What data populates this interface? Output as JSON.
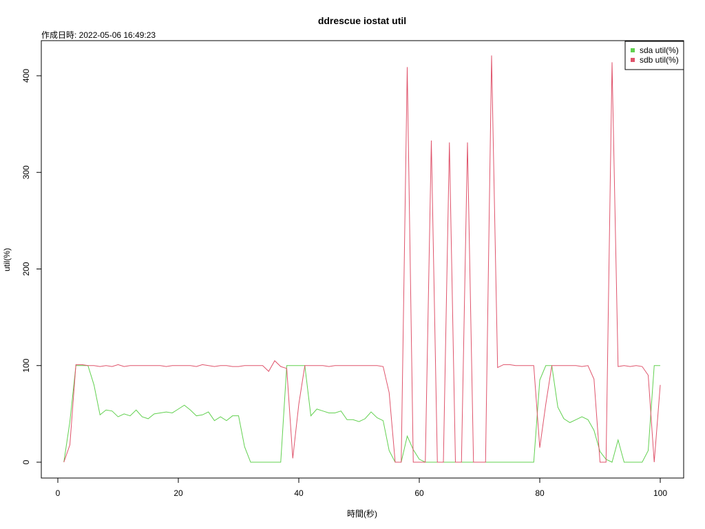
{
  "chart_data": {
    "type": "line",
    "title": "ddrescue iostat util",
    "subtitle": "作成日時: 2022-05-06 16:49:23",
    "xlabel": "時間(秒)",
    "ylabel": "util(%)",
    "xlim": [
      1,
      100
    ],
    "ylim": [
      0,
      420
    ],
    "xticks": [
      0,
      20,
      40,
      60,
      80,
      100
    ],
    "yticks": [
      0,
      100,
      200,
      300,
      400
    ],
    "grid": false,
    "legend_position": "top-right",
    "x": [
      1,
      2,
      3,
      4,
      5,
      6,
      7,
      8,
      9,
      10,
      11,
      12,
      13,
      14,
      15,
      16,
      17,
      18,
      19,
      20,
      21,
      22,
      23,
      24,
      25,
      26,
      27,
      28,
      29,
      30,
      31,
      32,
      33,
      34,
      35,
      36,
      37,
      38,
      39,
      40,
      41,
      42,
      43,
      44,
      45,
      46,
      47,
      48,
      49,
      50,
      51,
      52,
      53,
      54,
      55,
      56,
      57,
      58,
      59,
      60,
      61,
      62,
      63,
      64,
      65,
      66,
      67,
      68,
      69,
      70,
      71,
      72,
      73,
      74,
      75,
      76,
      77,
      78,
      79,
      80,
      81,
      82,
      83,
      84,
      85,
      86,
      87,
      88,
      89,
      90,
      91,
      92,
      93,
      94,
      95,
      96,
      97,
      98,
      99,
      100
    ],
    "series": [
      {
        "name": "sda util(%)",
        "color": "#61d04f",
        "values": [
          0,
          42,
          100,
          100,
          100,
          80,
          49,
          54,
          53,
          47,
          50,
          48,
          54,
          47,
          45,
          50,
          51,
          52,
          51,
          55,
          59,
          54,
          48,
          49,
          52,
          43,
          47,
          43,
          48,
          48,
          16,
          0,
          0,
          0,
          0,
          0,
          0,
          100,
          100,
          100,
          100,
          48,
          55,
          53,
          51,
          51,
          53,
          44,
          44,
          42,
          45,
          52,
          46,
          43,
          12,
          0,
          0,
          27,
          13,
          3,
          0,
          0,
          0,
          0,
          0,
          0,
          0,
          0,
          0,
          0,
          0,
          0,
          0,
          0,
          0,
          0,
          0,
          0,
          0,
          85,
          100,
          100,
          57,
          45,
          41,
          44,
          47,
          44,
          33,
          11,
          3,
          0,
          23,
          0,
          0,
          0,
          0,
          12,
          100,
          100
        ]
      },
      {
        "name": "sdb util(%)",
        "color": "#df536b",
        "values": [
          0,
          18,
          101,
          101,
          100,
          100,
          99,
          100,
          99,
          101,
          99,
          100,
          100,
          100,
          100,
          100,
          100,
          99,
          100,
          100,
          100,
          100,
          99,
          101,
          100,
          99,
          100,
          100,
          99,
          99,
          100,
          100,
          100,
          100,
          94,
          105,
          99,
          97,
          4,
          60,
          100,
          100,
          100,
          100,
          99,
          100,
          100,
          100,
          100,
          100,
          100,
          100,
          100,
          99,
          72,
          0,
          0,
          409,
          0,
          0,
          0,
          333,
          0,
          0,
          331,
          0,
          0,
          331,
          0,
          0,
          0,
          421,
          98,
          101,
          101,
          100,
          100,
          100,
          100,
          15,
          60,
          100,
          100,
          100,
          100,
          100,
          99,
          100,
          86,
          0,
          0,
          414,
          99,
          100,
          99,
          100,
          99,
          90,
          0,
          80
        ]
      }
    ]
  }
}
